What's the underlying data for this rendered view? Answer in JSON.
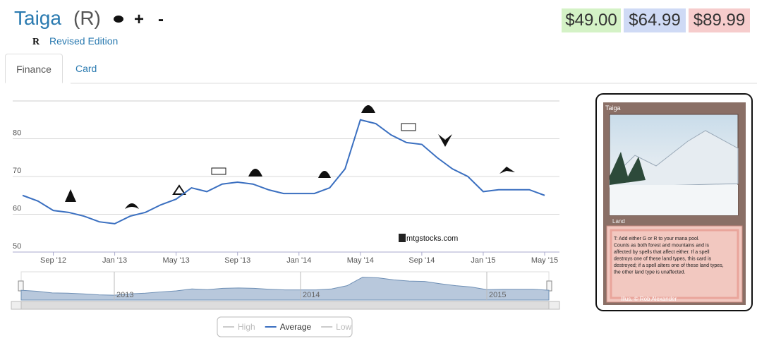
{
  "header": {
    "title": "Taiga",
    "rarity": "(R)",
    "actions": [
      "+",
      "-"
    ],
    "set_icon": "R",
    "set_name": "Revised Edition"
  },
  "prices": [
    "$49.00",
    "$64.99",
    "$89.99"
  ],
  "tabs": [
    "Finance",
    "Card"
  ],
  "chart_data": {
    "type": "line",
    "x": [
      "2012-07",
      "2012-08",
      "2012-09",
      "2012-10",
      "2012-11",
      "2012-12",
      "2013-01",
      "2013-02",
      "2013-03",
      "2013-04",
      "2013-05",
      "2013-06",
      "2013-07",
      "2013-08",
      "2013-09",
      "2013-10",
      "2013-11",
      "2013-12",
      "2014-01",
      "2014-02",
      "2014-03",
      "2014-04",
      "2014-05",
      "2014-06",
      "2014-07",
      "2014-08",
      "2014-09",
      "2014-10",
      "2014-11",
      "2014-12",
      "2015-01",
      "2015-02",
      "2015-03",
      "2015-04",
      "2015-05"
    ],
    "series": [
      {
        "name": "Average",
        "color": "#3a6fc0",
        "values": [
          65,
          63.5,
          61,
          60.5,
          59.5,
          58,
          57.5,
          59.5,
          60.5,
          62.5,
          64,
          67,
          66,
          68,
          68.5,
          68,
          66.5,
          65.5,
          65.5,
          65.5,
          67,
          72,
          85,
          84,
          81,
          79,
          78.5,
          75,
          72,
          70,
          66,
          66.5,
          66.5,
          66.5,
          65
        ]
      }
    ],
    "hidden_series": [
      "High",
      "Low"
    ],
    "xlim": [
      "2012-07",
      "2015-05"
    ],
    "xticks": [
      {
        "value": "2012-09",
        "label": "Sep '12"
      },
      {
        "value": "2013-01",
        "label": "Jan '13"
      },
      {
        "value": "2013-05",
        "label": "May '13"
      },
      {
        "value": "2013-09",
        "label": "Sep '13"
      },
      {
        "value": "2014-01",
        "label": "Jan '14"
      },
      {
        "value": "2014-05",
        "label": "May '14"
      },
      {
        "value": "2014-09",
        "label": "Sep '14"
      },
      {
        "value": "2015-01",
        "label": "Jan '15"
      },
      {
        "value": "2015-05",
        "label": "May '15"
      }
    ],
    "ylim": [
      50,
      90
    ],
    "yticks": [
      50,
      60,
      70,
      80
    ],
    "grid": true,
    "watermark": "mtgstocks.com",
    "navigator_labels": [
      {
        "value": "2013-01",
        "label": "2013"
      },
      {
        "value": "2014-01",
        "label": "2014"
      },
      {
        "value": "2015-01",
        "label": "2015"
      }
    ]
  },
  "card": {
    "name": "Taiga",
    "type_line": "Land",
    "rules": [
      "T: Add either G or R to your mana pool.",
      "Counts as both forest and mountains and is",
      "affected by spells that affect either. If a spell",
      "destroys one of these land types, this card is",
      "destroyed; if a spell alters one of these land types,",
      "the other land type is unaffected."
    ],
    "artist": "Illus. © Rob Alexander"
  }
}
